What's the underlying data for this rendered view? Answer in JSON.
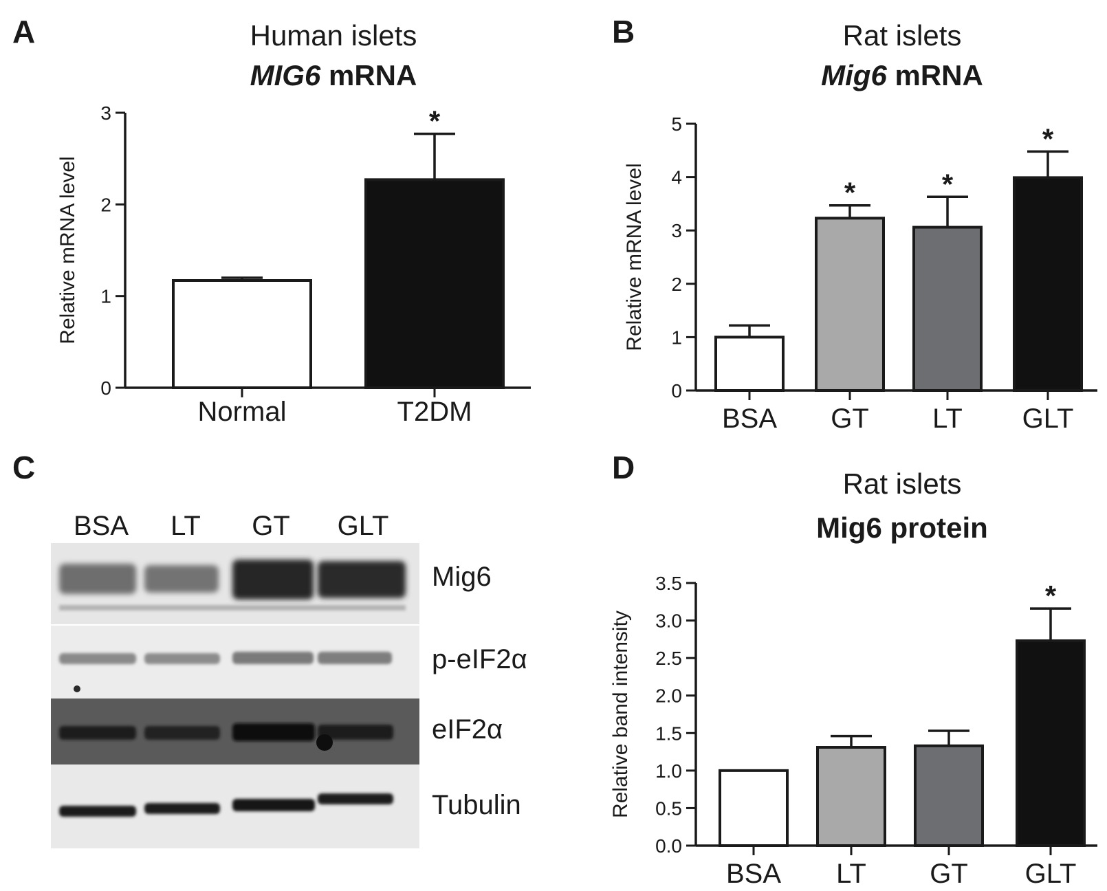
{
  "colors": {
    "white": "#ffffff",
    "light_gray": "#a9a9a9",
    "dark_gray": "#6d6e71",
    "black": "#111111"
  },
  "panels": {
    "A": {
      "letter": "A",
      "title_line1": "Human islets",
      "title_gene": "MIG6",
      "title_rest": " mRNA"
    },
    "B": {
      "letter": "B",
      "title_line1": "Rat islets",
      "title_gene": "Mig6",
      "title_rest": " mRNA"
    },
    "C": {
      "letter": "C"
    },
    "D": {
      "letter": "D",
      "title_line1": "Rat islets",
      "title_line2": "Mig6 protein"
    }
  },
  "blot": {
    "lanes": [
      "BSA",
      "LT",
      "GT",
      "GLT"
    ],
    "proteins": [
      "Mig6",
      "p-eIF2α",
      "eIF2α",
      "Tubulin"
    ]
  },
  "chart_data": [
    {
      "type": "bar",
      "panel": "A",
      "categories": [
        "Normal",
        "T2DM"
      ],
      "values": [
        1.17,
        2.27
      ],
      "errors": [
        0.03,
        0.5
      ],
      "significance": [
        "",
        "*"
      ],
      "bar_colors": [
        "#ffffff",
        "#111111"
      ],
      "ylabel": "Relative mRNA level",
      "ylim": [
        0,
        3
      ],
      "yticks": [
        "0",
        "1",
        "2",
        "3"
      ]
    },
    {
      "type": "bar",
      "panel": "B",
      "categories": [
        "BSA",
        "GT",
        "LT",
        "GLT"
      ],
      "values": [
        1.0,
        3.23,
        3.06,
        3.99
      ],
      "errors": [
        0.22,
        0.24,
        0.57,
        0.49
      ],
      "significance": [
        "",
        "*",
        "*",
        "*"
      ],
      "bar_colors": [
        "#ffffff",
        "#a9a9a9",
        "#6d6e71",
        "#111111"
      ],
      "ylabel": "Relative mRNA level",
      "ylim": [
        0,
        5
      ],
      "yticks": [
        "0",
        "1",
        "2",
        "3",
        "4",
        "5"
      ]
    },
    {
      "type": "bar",
      "panel": "D",
      "categories": [
        "BSA",
        "LT",
        "GT",
        "GLT"
      ],
      "values": [
        1.0,
        1.31,
        1.33,
        2.73
      ],
      "errors": [
        0,
        0.15,
        0.2,
        0.43
      ],
      "significance": [
        "",
        "",
        "",
        "*"
      ],
      "bar_colors": [
        "#ffffff",
        "#a9a9a9",
        "#6d6e71",
        "#111111"
      ],
      "ylabel": "Relative band intensity",
      "ylim": [
        0,
        3.5
      ],
      "yticks": [
        "0.0",
        "0.5",
        "1.0",
        "1.5",
        "2.0",
        "2.5",
        "3.0",
        "3.5"
      ]
    }
  ]
}
